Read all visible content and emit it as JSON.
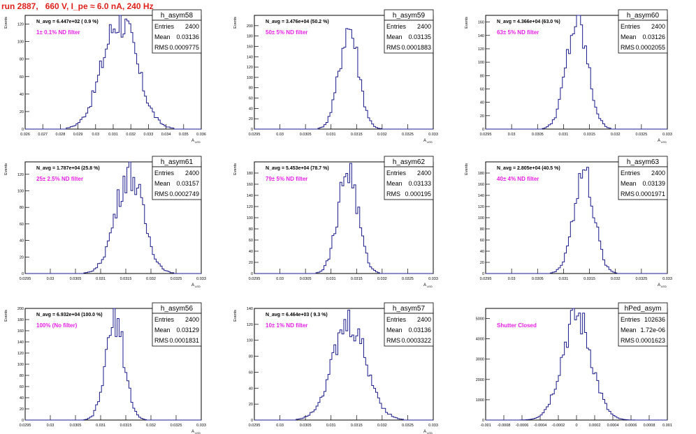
{
  "run_title": "run 2887,   660 V, I_pe ≈ 6.0 nA, 240 Hz",
  "colors": {
    "histogram": "#1a1a8c",
    "filter_text": "#e81ee8",
    "run_title": "#e0201a",
    "frame": "#000000"
  },
  "chart_data": [
    {
      "type": "bar",
      "name": "h_asym58",
      "ylabel": "Events",
      "xlabel": "A",
      "xlabel_sub": "LED",
      "xlim": [
        0.026,
        0.036
      ],
      "ylim": [
        0,
        130
      ],
      "xticks": [
        "0.026",
        "0.027",
        "0.028",
        "0.029",
        "0.03",
        "0.031",
        "0.032",
        "0.033",
        "0.034",
        "0.035",
        "0.036"
      ],
      "yticks": [
        0,
        20,
        40,
        60,
        80,
        100,
        120
      ],
      "stats": {
        "entries_label": "Entries",
        "entries": "2400",
        "mean_label": "Mean",
        "mean": "0.03136",
        "rms_label": "RMS",
        "rms": "0.0009775"
      },
      "n_avg": "N_avg = 6.447e+02 ( 0.9 %)",
      "filter": "1± 0.1% ND filter",
      "dist": {
        "mean": 0.03136,
        "sigma": 0.00098,
        "peak": 125
      }
    },
    {
      "type": "bar",
      "name": "h_asym59",
      "ylabel": "Events",
      "xlabel": "A",
      "xlabel_sub": "LED",
      "xlim": [
        0.0295,
        0.033
      ],
      "ylim": [
        0,
        220
      ],
      "xticks": [
        "0.0295",
        "0.03",
        "0.0305",
        "0.031",
        "0.0315",
        "0.032",
        "0.0325",
        "0.033"
      ],
      "yticks": [
        0,
        20,
        40,
        60,
        80,
        100,
        120,
        140,
        160,
        180,
        200
      ],
      "stats": {
        "entries_label": "Entries",
        "entries": "2400",
        "mean_label": "Mean",
        "mean": "0.03135",
        "rms_label": "RMS",
        "rms": "0.0001883"
      },
      "n_avg": "N_avg = 3.476e+04 (50.2 %)",
      "filter": "50± 5% ND filter",
      "dist": {
        "mean": 0.03135,
        "sigma": 0.000188,
        "peak": 198
      }
    },
    {
      "type": "bar",
      "name": "h_asym60",
      "ylabel": "Events",
      "xlabel": "A",
      "xlabel_sub": "LED",
      "xlim": [
        0.0295,
        0.033
      ],
      "ylim": [
        0,
        170
      ],
      "xticks": [
        "0.0295",
        "0.03",
        "0.0305",
        "0.031",
        "0.0315",
        "0.032",
        "0.0325",
        "0.033"
      ],
      "yticks": [
        0,
        20,
        40,
        60,
        80,
        100,
        120,
        140,
        160
      ],
      "stats": {
        "entries_label": "Entries",
        "entries": "2400",
        "mean_label": "Mean",
        "mean": "0.03126",
        "rms_label": "RMS",
        "rms": "0.0002055"
      },
      "n_avg": "N_avg = 4.366e+04 (63.0 %)",
      "filter": "63± 5% ND filter",
      "dist": {
        "mean": 0.03126,
        "sigma": 0.000206,
        "peak": 160
      }
    },
    {
      "type": "bar",
      "name": "h_asym61",
      "ylabel": "Events",
      "xlabel": "A",
      "xlabel_sub": "LED",
      "xlim": [
        0.0295,
        0.033
      ],
      "ylim": [
        0,
        135
      ],
      "xticks": [
        "0.0295",
        "0.03",
        "0.0305",
        "0.031",
        "0.0315",
        "0.032",
        "0.0325",
        "0.033"
      ],
      "yticks": [
        0,
        20,
        40,
        60,
        80,
        100,
        120
      ],
      "stats": {
        "entries_label": "Entries",
        "entries": "2400",
        "mean_label": "Mean",
        "mean": "0.03157",
        "rms_label": "RMS",
        "rms": "0.0002749"
      },
      "n_avg": "N_avg = 1.787e+04 (25.8 %)",
      "filter": "25± 2.5% ND filter",
      "dist": {
        "mean": 0.03157,
        "sigma": 0.000275,
        "peak": 122
      }
    },
    {
      "type": "bar",
      "name": "h_asym62",
      "ylabel": "Events",
      "xlabel": "A",
      "xlabel_sub": "LED",
      "xlim": [
        0.0295,
        0.033
      ],
      "ylim": [
        0,
        200
      ],
      "xticks": [
        "0.0295",
        "0.03",
        "0.0305",
        "0.031",
        "0.0315",
        "0.032",
        "0.0325",
        "0.033"
      ],
      "yticks": [
        0,
        20,
        40,
        60,
        80,
        100,
        120,
        140,
        160,
        180
      ],
      "stats": {
        "entries_label": "Entries",
        "entries": "2400",
        "mean_label": "Mean",
        "mean": "0.03133",
        "rms_label": "RMS",
        "rms": "0.000195"
      },
      "n_avg": "N_avg = 5.453e+04 (78.7 %)",
      "filter": "79± 5% ND filter",
      "dist": {
        "mean": 0.03133,
        "sigma": 0.000195,
        "peak": 185
      }
    },
    {
      "type": "bar",
      "name": "h_asym63",
      "ylabel": "Events",
      "xlabel": "A",
      "xlabel_sub": "LED",
      "xlim": [
        0.0295,
        0.033
      ],
      "ylim": [
        0,
        200
      ],
      "xticks": [
        "0.0295",
        "0.03",
        "0.0305",
        "0.031",
        "0.0315",
        "0.032",
        "0.0325",
        "0.033"
      ],
      "yticks": [
        0,
        20,
        40,
        60,
        80,
        100,
        120,
        140,
        160,
        180
      ],
      "stats": {
        "entries_label": "Entries",
        "entries": "2400",
        "mean_label": "Mean",
        "mean": "0.03139",
        "rms_label": "RMS",
        "rms": "0.0001971"
      },
      "n_avg": "N_avg = 2.805e+04 (40.5 %)",
      "filter": "40± 4% ND filter",
      "dist": {
        "mean": 0.03139,
        "sigma": 0.000197,
        "peak": 180
      }
    },
    {
      "type": "bar",
      "name": "h_asym56",
      "ylabel": "Events",
      "xlabel": "A",
      "xlabel_sub": "LED",
      "xlim": [
        0.0295,
        0.033
      ],
      "ylim": [
        0,
        200
      ],
      "xticks": [
        "0.0295",
        "0.03",
        "0.0305",
        "0.031",
        "0.0315",
        "0.032",
        "0.0325",
        "0.033"
      ],
      "yticks": [
        0,
        20,
        40,
        60,
        80,
        100,
        120,
        140,
        160,
        180,
        200
      ],
      "stats": {
        "entries_label": "Entries",
        "entries": "2400",
        "mean_label": "Mean",
        "mean": "0.03129",
        "rms_label": "RMS",
        "rms": "0.0001831"
      },
      "n_avg": "N_avg = 6.932e+04 (100.0 %)",
      "filter": "100% (No filter)",
      "dist": {
        "mean": 0.03129,
        "sigma": 0.000183,
        "peak": 180
      }
    },
    {
      "type": "bar",
      "name": "h_asym57",
      "ylabel": "Events",
      "xlabel": "A",
      "xlabel_sub": "LED",
      "xlim": [
        0.0295,
        0.033
      ],
      "ylim": [
        0,
        140
      ],
      "xticks": [
        "0.0295",
        "0.03",
        "0.0305",
        "0.031",
        "0.0315",
        "0.032",
        "0.0325",
        "0.033"
      ],
      "yticks": [
        0,
        20,
        40,
        60,
        80,
        100,
        120,
        140
      ],
      "stats": {
        "entries_label": "Entries",
        "entries": "2400",
        "mean_label": "Mean",
        "mean": "0.03136",
        "rms_label": "RMS",
        "rms": "0.0003322"
      },
      "n_avg": "N_avg = 6.464e+03 ( 9.3 %)",
      "filter": "10± 1% ND filter",
      "dist": {
        "mean": 0.03136,
        "sigma": 0.000332,
        "peak": 120
      }
    },
    {
      "type": "bar",
      "name": "hPed_asym",
      "ylabel": "",
      "xlabel": "",
      "xlabel_sub": "",
      "xlim": [
        -0.001,
        0.001
      ],
      "ylim": [
        0,
        5500
      ],
      "xticks": [
        "-0.001",
        "-0.0008",
        "-0.0006",
        "-0.0004",
        "-0.0002",
        "0",
        "0.0002",
        "0.0004",
        "0.0006",
        "0.0008",
        "0.001"
      ],
      "yticks": [
        0,
        1000,
        2000,
        3000,
        4000,
        5000
      ],
      "stats": {
        "entries_label": "Entries",
        "entries": "102636",
        "mean_label": "Mean",
        "mean": "1.72e-06",
        "rms_label": "RMS",
        "rms": "0.0001623"
      },
      "n_avg": "",
      "filter": "Shutter Closed",
      "dist": {
        "mean": 1.7e-06,
        "sigma": 0.000162,
        "peak": 5100
      }
    }
  ]
}
